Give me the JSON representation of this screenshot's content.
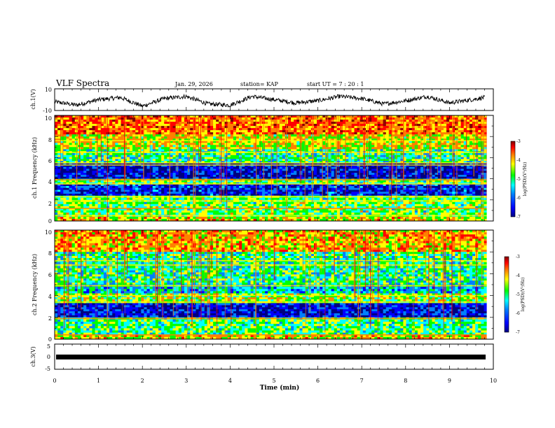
{
  "header": {
    "title": "VLF Spectra",
    "date": "Jan. 29, 2026",
    "station": "station= KAP",
    "start": "start  UT =   7 : 20 : 1"
  },
  "colors": {
    "background": "#ffffff",
    "trace": "#000000",
    "colormap": [
      "#000080",
      "#0000ff",
      "#0080ff",
      "#00ffff",
      "#00ff00",
      "#ffff00",
      "#ff8000",
      "#ff0000",
      "#800000"
    ]
  },
  "chart_data": [
    {
      "type": "line",
      "name": "ch1-waveform",
      "ylabel": "ch.1(V)",
      "ylim": [
        -10,
        10
      ],
      "y_ticks": [
        "10",
        "-10"
      ],
      "xlim": [
        0,
        10
      ],
      "x": [
        0,
        0.5,
        1,
        1.5,
        2,
        2.5,
        3,
        3.5,
        4,
        4.5,
        5,
        5.5,
        6,
        6.5,
        7,
        7.5,
        8,
        8.5,
        9,
        9.5,
        9.8
      ],
      "values": [
        -2,
        -5,
        0,
        2,
        -6,
        1,
        3,
        -4,
        -5,
        3,
        0,
        -3,
        -1,
        3,
        1,
        -4,
        -1,
        3,
        -3,
        0,
        2
      ]
    },
    {
      "type": "heatmap",
      "name": "ch1-spectrogram",
      "ylabel": "ch.1 Frequency (kHz)",
      "ylim": [
        0,
        10
      ],
      "y_ticks": [
        "0",
        "2",
        "4",
        "6",
        "8",
        "10"
      ],
      "xlim": [
        0,
        10
      ],
      "data_end_min": 9.85,
      "bands_khz": [
        {
          "from": 8.2,
          "to": 10,
          "level": -4.0
        },
        {
          "from": 6.8,
          "to": 8.2,
          "level": -4.6
        },
        {
          "from": 5.5,
          "to": 6.8,
          "level": -5.2
        },
        {
          "from": 4.0,
          "to": 5.5,
          "level": -6.5
        },
        {
          "from": 3.5,
          "to": 4.0,
          "level": -5.0
        },
        {
          "from": 2.4,
          "to": 3.5,
          "level": -6.3
        },
        {
          "from": 0.4,
          "to": 2.4,
          "level": -5.0
        },
        {
          "from": 0.0,
          "to": 0.4,
          "level": -4.5
        }
      ],
      "lines_khz": [
        0.5,
        1.2,
        1.9,
        2.3,
        3.5,
        3.9,
        5.3,
        5.5,
        6.5,
        7.6
      ],
      "colorbar": {
        "range": [
          -7,
          -3
        ],
        "ticks": [
          "-3",
          "-4",
          "-5",
          "-6",
          "-7"
        ],
        "label": "log(PSD)(V²/Hz)"
      }
    },
    {
      "type": "heatmap",
      "name": "ch2-spectrogram",
      "ylabel": "ch.2 Frequency (kHz)",
      "ylim": [
        0,
        10
      ],
      "y_ticks": [
        "0",
        "2",
        "4",
        "6",
        "8",
        "10"
      ],
      "xlim": [
        0,
        10
      ],
      "data_end_min": 9.85,
      "bands_khz": [
        {
          "from": 8.0,
          "to": 10,
          "level": -4.3
        },
        {
          "from": 5.0,
          "to": 8.0,
          "level": -5.2
        },
        {
          "from": 4.2,
          "to": 5.0,
          "level": -5.6
        },
        {
          "from": 3.3,
          "to": 4.2,
          "level": -4.8
        },
        {
          "from": 2.0,
          "to": 3.3,
          "level": -6.4
        },
        {
          "from": 0.4,
          "to": 2.0,
          "level": -5.1
        },
        {
          "from": 0.0,
          "to": 0.4,
          "level": -4.5
        }
      ],
      "lines_khz": [
        0.4,
        1.9,
        3.4,
        4.0,
        4.9,
        6.8,
        7.2
      ],
      "colorbar": {
        "range": [
          -7,
          -3
        ],
        "ticks": [
          "-3",
          "-4",
          "-5",
          "-6",
          "-7"
        ],
        "label": "log(PSD)(V²/Hz)"
      }
    },
    {
      "type": "line",
      "name": "ch3-waveform",
      "ylabel": "ch.3(V)",
      "ylim": [
        -5,
        5
      ],
      "y_ticks": [
        "5",
        "0",
        "-5"
      ],
      "xlim": [
        0,
        10
      ],
      "band_level": [
        -0.9,
        0.9
      ],
      "x_ticks": [
        "0",
        "1",
        "2",
        "3",
        "4",
        "5",
        "6",
        "7",
        "8",
        "9",
        "10"
      ],
      "xlabel": "Time  (min)"
    }
  ]
}
